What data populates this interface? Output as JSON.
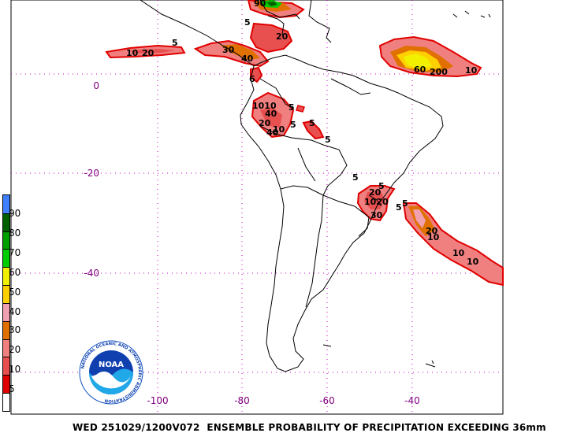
{
  "footer_text": "WED 251029/1200V072  ENSEMBLE PROBABILITY OF PRECIPITATION EXCEEDING 36mm",
  "logo_text": "NOAA",
  "logo_ring_text": "NATIONAL OCEANIC AND ATMOSPHERIC ADMINISTRATION",
  "latitude_labels": [
    "0",
    "-20",
    "-40"
  ],
  "longitude_labels": [
    "-100",
    "-80",
    "-60",
    "-40"
  ],
  "colorbar": {
    "labels": [
      "5",
      "10",
      "20",
      "30",
      "40",
      "50",
      "60",
      "70",
      "80",
      "90"
    ],
    "colors": [
      "#ffffff",
      "#e00000",
      "#e85050",
      "#f08080",
      "#e07000",
      "#f0a0b0",
      "#ffd000",
      "#f0f000",
      "#00cc00",
      "#00a000",
      "#006000",
      "#4080ff"
    ]
  },
  "contour_labels": {
    "a": "5",
    "b": "10",
    "c": "20",
    "d": "30",
    "e": "40",
    "f": "90",
    "g": "60",
    "h": "200",
    "i": "10",
    "j": "20",
    "k": "5",
    "l": "6",
    "m": "1010",
    "n": "40",
    "o": "20",
    "p": "10",
    "q": "40",
    "r": "5",
    "s": "5",
    "t": "5",
    "u": "5",
    "v": "20",
    "w": "1020",
    "x": "30",
    "y": "5",
    "z": "5",
    "aa": "20",
    "ab": "10",
    "ac": "10",
    "ad": "5",
    "ae": "10",
    "af": "5"
  }
}
